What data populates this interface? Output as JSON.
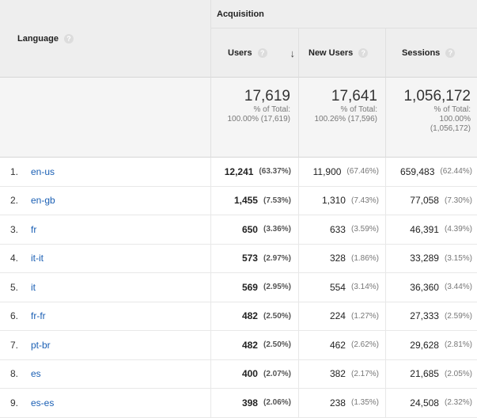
{
  "header": {
    "language_label": "Language",
    "group_label": "Acquisition",
    "columns": {
      "users": "Users",
      "new_users": "New Users",
      "sessions": "Sessions"
    },
    "help_glyph": "?",
    "sort_glyph": "↓"
  },
  "totals": {
    "users": {
      "value": "17,619",
      "line1": "% of Total:",
      "line2": "100.00% (17,619)"
    },
    "new_users": {
      "value": "17,641",
      "line1": "% of Total:",
      "line2": "100.26% (17,596)"
    },
    "sessions": {
      "value": "1,056,172",
      "line1": "% of Total:",
      "line2": "100.00%",
      "line3": "(1,056,172)"
    }
  },
  "rows": [
    {
      "index": "1.",
      "language": "en-us",
      "users": "12,241",
      "users_pct": "(63.37%)",
      "new_users": "11,900",
      "new_users_pct": "(67.46%)",
      "sessions": "659,483",
      "sessions_pct": "(62.44%)"
    },
    {
      "index": "2.",
      "language": "en-gb",
      "users": "1,455",
      "users_pct": "(7.53%)",
      "new_users": "1,310",
      "new_users_pct": "(7.43%)",
      "sessions": "77,058",
      "sessions_pct": "(7.30%)"
    },
    {
      "index": "3.",
      "language": "fr",
      "users": "650",
      "users_pct": "(3.36%)",
      "new_users": "633",
      "new_users_pct": "(3.59%)",
      "sessions": "46,391",
      "sessions_pct": "(4.39%)"
    },
    {
      "index": "4.",
      "language": "it-it",
      "users": "573",
      "users_pct": "(2.97%)",
      "new_users": "328",
      "new_users_pct": "(1.86%)",
      "sessions": "33,289",
      "sessions_pct": "(3.15%)"
    },
    {
      "index": "5.",
      "language": "it",
      "users": "569",
      "users_pct": "(2.95%)",
      "new_users": "554",
      "new_users_pct": "(3.14%)",
      "sessions": "36,360",
      "sessions_pct": "(3.44%)"
    },
    {
      "index": "6.",
      "language": "fr-fr",
      "users": "482",
      "users_pct": "(2.50%)",
      "new_users": "224",
      "new_users_pct": "(1.27%)",
      "sessions": "27,333",
      "sessions_pct": "(2.59%)"
    },
    {
      "index": "7.",
      "language": "pt-br",
      "users": "482",
      "users_pct": "(2.50%)",
      "new_users": "462",
      "new_users_pct": "(2.62%)",
      "sessions": "29,628",
      "sessions_pct": "(2.81%)"
    },
    {
      "index": "8.",
      "language": "es",
      "users": "400",
      "users_pct": "(2.07%)",
      "new_users": "382",
      "new_users_pct": "(2.17%)",
      "sessions": "21,685",
      "sessions_pct": "(2.05%)"
    },
    {
      "index": "9.",
      "language": "es-es",
      "users": "398",
      "users_pct": "(2.06%)",
      "new_users": "238",
      "new_users_pct": "(1.35%)",
      "sessions": "24,508",
      "sessions_pct": "(2.32%)"
    }
  ]
}
